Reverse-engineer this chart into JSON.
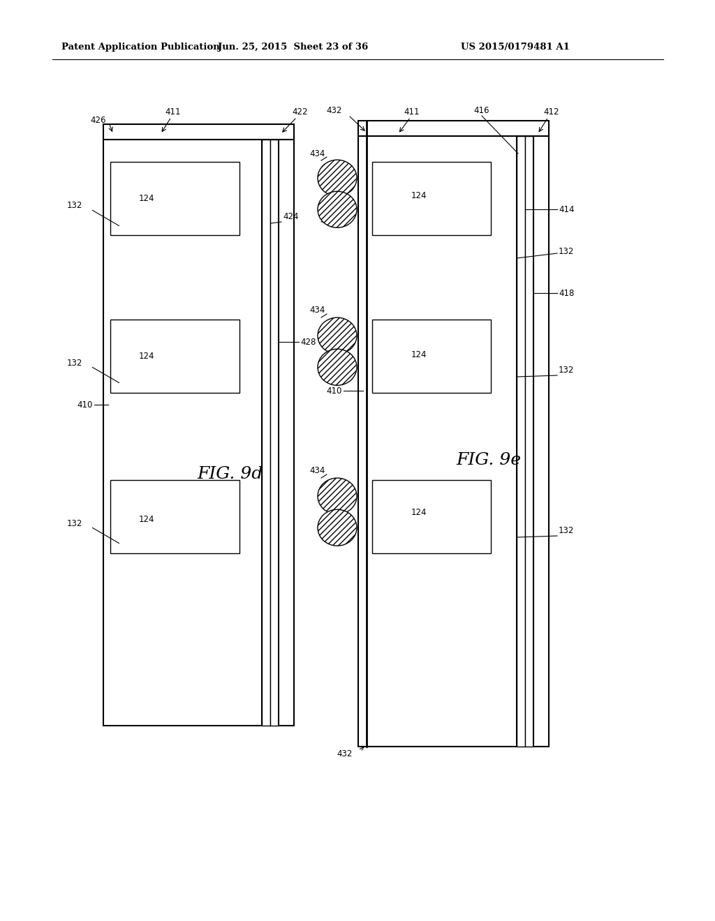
{
  "title_left": "Patent Application Publication",
  "title_mid": "Jun. 25, 2015  Sheet 23 of 36",
  "title_right": "US 2015/0179481 A1",
  "fig9d_label": "FIG. 9d",
  "fig9e_label": "FIG. 9e",
  "bg_color": "#ffffff",
  "line_color": "#000000",
  "lw_main": 1.5,
  "lw_thin": 1.0,
  "label_fs": 8.5,
  "fig_label_fs": 18
}
